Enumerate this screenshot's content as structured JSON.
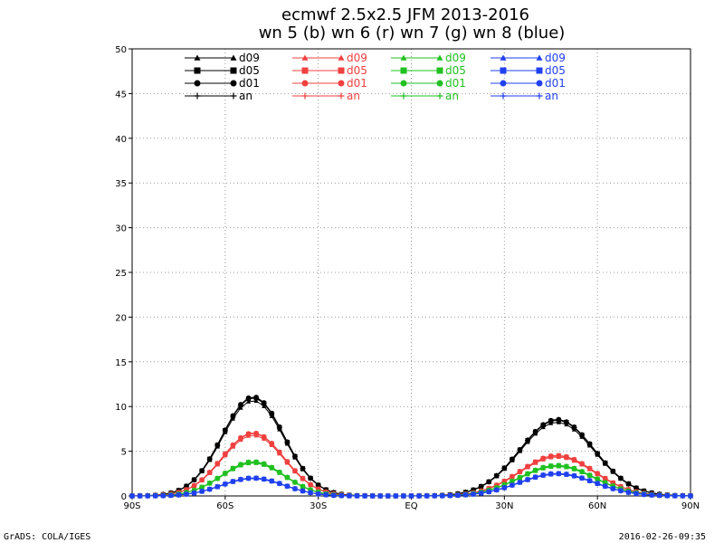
{
  "titles": {
    "line1": "ecmwf 2.5x2.5 JFM 2013-2016",
    "line2": "wn 5 (b) wn 6 (r) wn 7 (g) wn 8 (blue)"
  },
  "footer": {
    "left": "GrADS: COLA/IGES",
    "right": "2016-02-26-09:35"
  },
  "chart_data": {
    "type": "line",
    "xlim": [
      -90,
      90
    ],
    "ylim": [
      0,
      50
    ],
    "grid": true,
    "legend_position": "top",
    "x_ticks": [
      {
        "value": -90,
        "label": "90S"
      },
      {
        "value": -60,
        "label": "60S"
      },
      {
        "value": -30,
        "label": "30S"
      },
      {
        "value": 0,
        "label": "EQ"
      },
      {
        "value": 30,
        "label": "30N"
      },
      {
        "value": 60,
        "label": "60N"
      },
      {
        "value": 90,
        "label": "90N"
      }
    ],
    "y_ticks": [
      0,
      5,
      10,
      15,
      20,
      25,
      30,
      35,
      40,
      45,
      50
    ],
    "wavenumbers": [
      {
        "wn": 5,
        "color": "#000000",
        "peak_sh": 11.0,
        "peak_nh": 8.5
      },
      {
        "wn": 6,
        "color": "#f04040",
        "peak_sh": 7.0,
        "peak_nh": 4.5
      },
      {
        "wn": 7,
        "color": "#20c020",
        "peak_sh": 3.8,
        "peak_nh": 3.4
      },
      {
        "wn": 8,
        "color": "#2040f0",
        "peak_sh": 2.0,
        "peak_nh": 2.5
      }
    ],
    "leads": [
      {
        "name": "d09",
        "marker": "triangle",
        "factor": 0.97
      },
      {
        "name": "d05",
        "marker": "square",
        "factor": 1.0
      },
      {
        "name": "d01",
        "marker": "circle",
        "factor": 1.01
      },
      {
        "name": "an",
        "marker": "plus",
        "factor": 1.0
      }
    ],
    "sh_center": -51.0,
    "sh_width": 10.0,
    "nh_center": 47.0,
    "nh_width": 12.0
  }
}
